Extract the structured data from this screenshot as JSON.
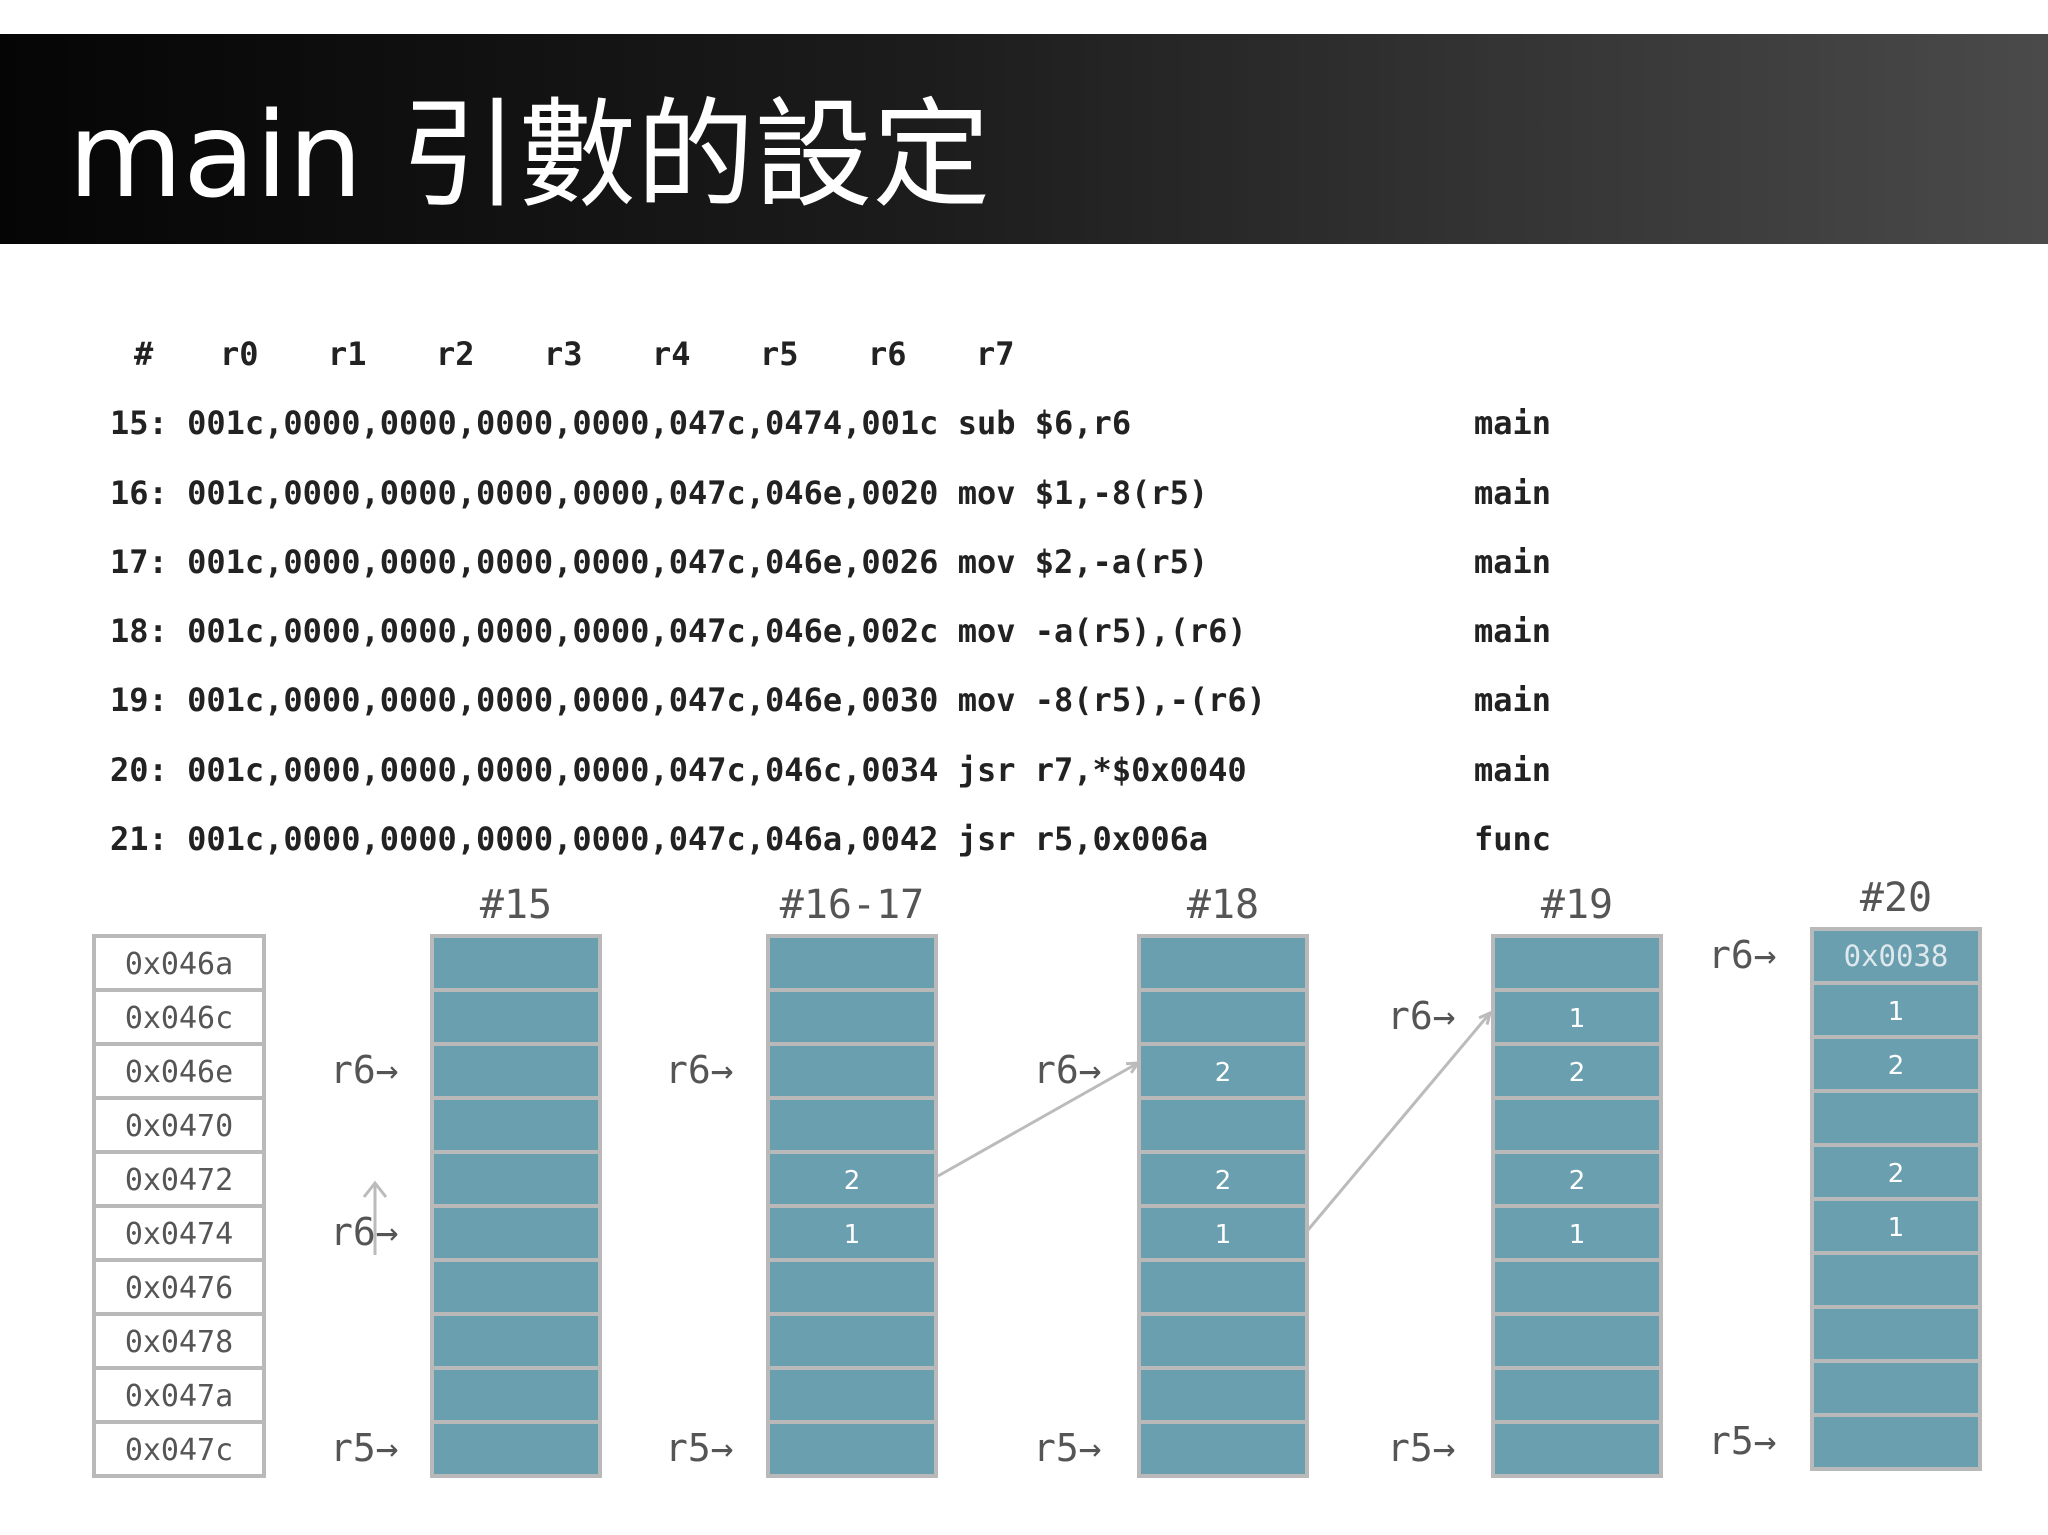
{
  "title": "main 引數的設定",
  "trace": {
    "header": [
      "#",
      "r0",
      "r1",
      "r2",
      "r3",
      "r4",
      "r5",
      "r6",
      "r7"
    ],
    "rows": [
      {
        "code": "15: 001c,0000,0000,0000,0000,047c,0474,001c sub $6,r6",
        "fn": "main"
      },
      {
        "code": "16: 001c,0000,0000,0000,0000,047c,046e,0020 mov $1,-8(r5)",
        "fn": "main"
      },
      {
        "code": "17: 001c,0000,0000,0000,0000,047c,046e,0026 mov $2,-a(r5)",
        "fn": "main"
      },
      {
        "code": "18: 001c,0000,0000,0000,0000,047c,046e,002c mov -a(r5),(r6)",
        "fn": "main"
      },
      {
        "code": "19: 001c,0000,0000,0000,0000,047c,046e,0030 mov -8(r5),-(r6)",
        "fn": "main"
      },
      {
        "code": "20: 001c,0000,0000,0000,0000,047c,046c,0034 jsr r7,*$0x0040",
        "fn": "main"
      },
      {
        "code": "21: 001c,0000,0000,0000,0000,047c,046a,0042 jsr r5,0x006a",
        "fn": "func"
      }
    ]
  },
  "diagram": {
    "addresses": [
      "0x046a",
      "0x046c",
      "0x046e",
      "0x0470",
      "0x0472",
      "0x0474",
      "0x0476",
      "0x0478",
      "0x047a",
      "0x047c"
    ],
    "colors": {
      "cell": "#6a9fb0",
      "border": "#b9b9b9",
      "arrow": "#bbbbbb",
      "label": "#555555"
    },
    "stacks": [
      {
        "label": "#15",
        "cells": [
          "",
          "",
          "",
          "",
          "",
          "",
          "",
          "",
          "",
          ""
        ],
        "pointers": [
          {
            "text": "r6→",
            "row": 2
          },
          {
            "text": "r6→",
            "row": 5
          },
          {
            "text": "r5→",
            "row": 9
          }
        ]
      },
      {
        "label": "#16-17",
        "cells": [
          "",
          "",
          "",
          "",
          "2",
          "1",
          "",
          "",
          "",
          ""
        ],
        "pointers": [
          {
            "text": "r6→",
            "row": 2
          },
          {
            "text": "r5→",
            "row": 9
          }
        ]
      },
      {
        "label": "#18",
        "cells": [
          "",
          "",
          "2",
          "",
          "2",
          "1",
          "",
          "",
          "",
          ""
        ],
        "pointers": [
          {
            "text": "r6→",
            "row": 2
          },
          {
            "text": "r5→",
            "row": 9
          }
        ]
      },
      {
        "label": "#19",
        "cells": [
          "",
          "1",
          "2",
          "",
          "2",
          "1",
          "",
          "",
          "",
          ""
        ],
        "pointers": [
          {
            "text": "r6→",
            "row": 1
          },
          {
            "text": "r5→",
            "row": 9
          }
        ]
      },
      {
        "label": "#20",
        "cells": [
          "0x0038",
          "1",
          "2",
          "",
          "2",
          "1",
          "",
          "",
          "",
          ""
        ],
        "pointers": [
          {
            "text": "r6→",
            "row": 0
          },
          {
            "text": "r5→",
            "row": 9
          }
        ]
      }
    ]
  }
}
